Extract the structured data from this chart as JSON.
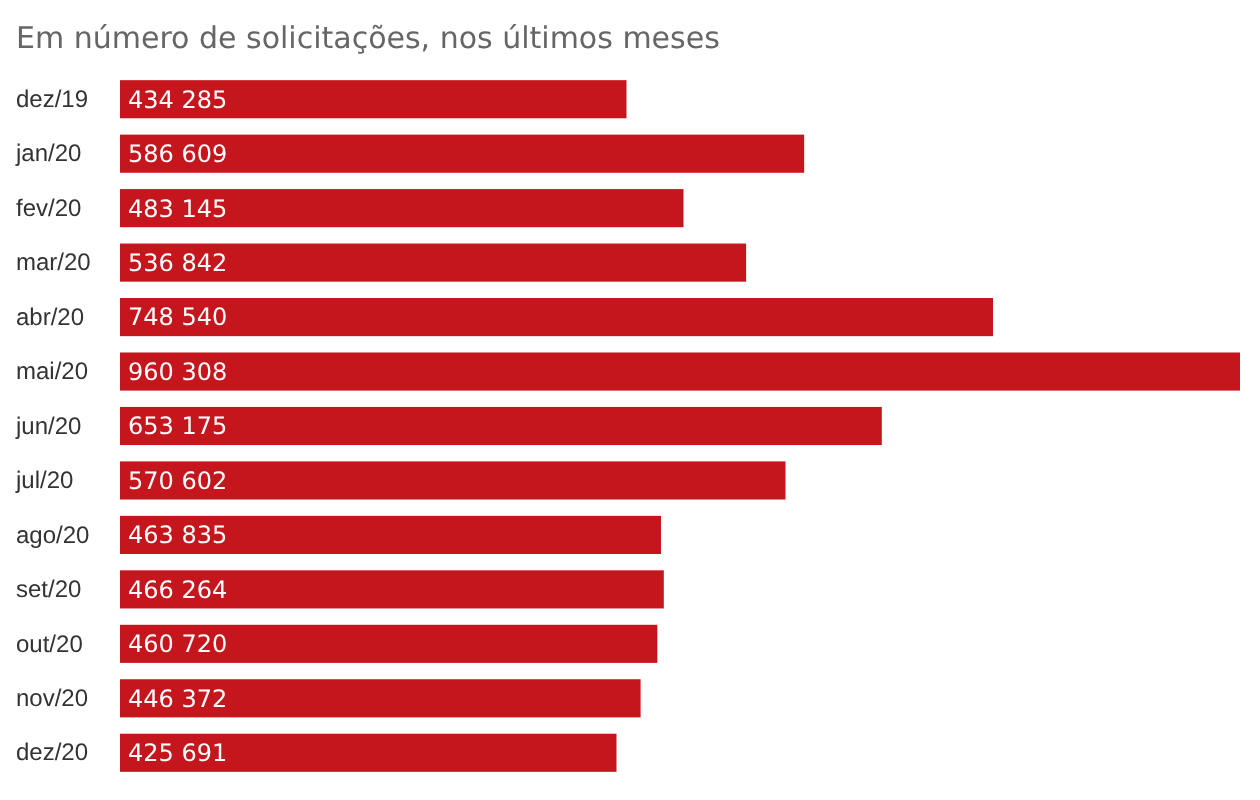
{
  "chart_data": {
    "type": "bar",
    "orientation": "horizontal",
    "subtitle": "Em número de solicitações, nos últimos meses",
    "categories": [
      "dez/19",
      "jan/20",
      "fev/20",
      "mar/20",
      "abr/20",
      "mai/20",
      "jun/20",
      "jul/20",
      "ago/20",
      "set/20",
      "out/20",
      "nov/20",
      "dez/20"
    ],
    "values": [
      434285,
      586609,
      483145,
      536842,
      748540,
      960308,
      653175,
      570602,
      463835,
      466264,
      460720,
      446372,
      425691
    ],
    "value_labels": [
      "434 285",
      "586 609",
      "483 145",
      "536 842",
      "748 540",
      "960 308",
      "653 175",
      "570 602",
      "463 835",
      "466 264",
      "460 720",
      "446 372",
      "425 691"
    ],
    "color": "#c4161c",
    "xlim": [
      0,
      960308
    ],
    "tick_labels": "y"
  }
}
